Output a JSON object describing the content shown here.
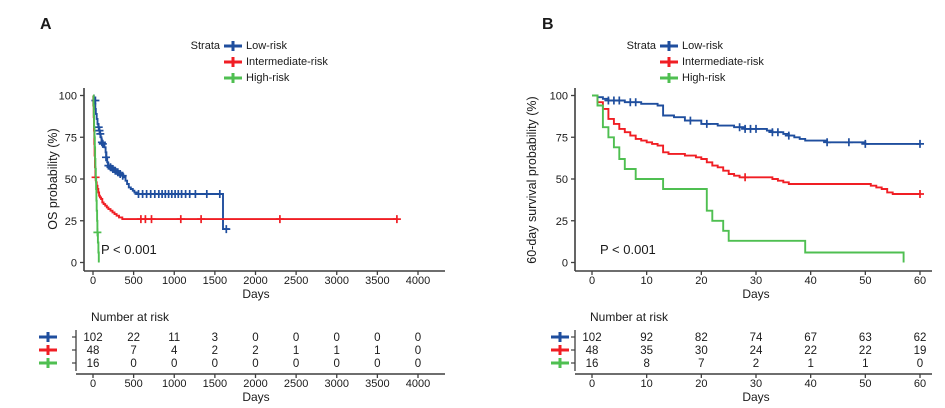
{
  "figure": {
    "background": "#ffffff",
    "text_color": "#1a1a1a",
    "axis_color": "#3f3f3f"
  },
  "chart_data": [
    {
      "type": "line",
      "subtype": "kaplan-meier-step",
      "panel": "A",
      "legend": {
        "title": "Strata",
        "position": "top",
        "entries": [
          {
            "name": "Low-risk",
            "color": "#1F4E9E"
          },
          {
            "name": "Intermediate-risk",
            "color": "#F01E24"
          },
          {
            "name": "High-risk",
            "color": "#4FBF51"
          }
        ]
      },
      "xlabel": "Days",
      "ylabel": "OS probability (%)",
      "p_value": "P < 0.001",
      "xlim": [
        0,
        4000
      ],
      "ylim": [
        0,
        100
      ],
      "x_ticks": [
        0,
        500,
        1000,
        1500,
        2000,
        2500,
        3000,
        3500,
        4000
      ],
      "y_ticks": [
        0,
        25,
        50,
        75,
        100
      ],
      "grid": false,
      "series": [
        {
          "name": "Low-risk",
          "color": "#1F4E9E",
          "steps": [
            [
              0,
              100
            ],
            [
              10,
              97
            ],
            [
              20,
              95
            ],
            [
              28,
              92
            ],
            [
              35,
              89
            ],
            [
              45,
              86
            ],
            [
              55,
              83
            ],
            [
              65,
              81
            ],
            [
              75,
              79
            ],
            [
              85,
              77
            ],
            [
              95,
              75
            ],
            [
              105,
              73
            ],
            [
              115,
              72
            ],
            [
              125,
              71
            ],
            [
              140,
              69
            ],
            [
              155,
              66
            ],
            [
              165,
              63
            ],
            [
              175,
              60
            ],
            [
              185,
              58
            ],
            [
              200,
              57
            ],
            [
              230,
              56
            ],
            [
              260,
              55
            ],
            [
              290,
              54
            ],
            [
              320,
              53
            ],
            [
              350,
              52
            ],
            [
              380,
              51
            ],
            [
              400,
              49
            ],
            [
              420,
              47
            ],
            [
              440,
              45
            ],
            [
              465,
              44
            ],
            [
              490,
              43
            ],
            [
              510,
              42
            ],
            [
              540,
              41
            ],
            [
              1600,
              41
            ],
            [
              1600,
              20
            ],
            [
              1680,
              20
            ]
          ],
          "censors": [
            [
              30,
              97
            ],
            [
              70,
              81
            ],
            [
              80,
              79
            ],
            [
              90,
              77
            ],
            [
              110,
              72
            ],
            [
              120,
              71
            ],
            [
              160,
              63
            ],
            [
              190,
              58
            ],
            [
              215,
              57
            ],
            [
              245,
              56
            ],
            [
              275,
              55
            ],
            [
              305,
              54
            ],
            [
              335,
              53
            ],
            [
              365,
              52
            ],
            [
              560,
              41
            ],
            [
              610,
              41
            ],
            [
              660,
              41
            ],
            [
              710,
              41
            ],
            [
              760,
              41
            ],
            [
              810,
              41
            ],
            [
              850,
              41
            ],
            [
              890,
              41
            ],
            [
              930,
              41
            ],
            [
              970,
              41
            ],
            [
              1010,
              41
            ],
            [
              1050,
              41
            ],
            [
              1090,
              41
            ],
            [
              1140,
              41
            ],
            [
              1190,
              41
            ],
            [
              1260,
              41
            ],
            [
              1400,
              41
            ],
            [
              1560,
              41
            ],
            [
              1640,
              20
            ]
          ]
        },
        {
          "name": "Intermediate-risk",
          "color": "#F01E24",
          "steps": [
            [
              0,
              100
            ],
            [
              4,
              94
            ],
            [
              8,
              87
            ],
            [
              12,
              79
            ],
            [
              16,
              71
            ],
            [
              20,
              64
            ],
            [
              25,
              57
            ],
            [
              30,
              51
            ],
            [
              38,
              48
            ],
            [
              46,
              46
            ],
            [
              55,
              44
            ],
            [
              65,
              42
            ],
            [
              75,
              40
            ],
            [
              85,
              39
            ],
            [
              100,
              38
            ],
            [
              115,
              36
            ],
            [
              130,
              35
            ],
            [
              150,
              34
            ],
            [
              170,
              33
            ],
            [
              190,
              32
            ],
            [
              215,
              31
            ],
            [
              240,
              30
            ],
            [
              265,
              29
            ],
            [
              290,
              28
            ],
            [
              320,
              27
            ],
            [
              360,
              26
            ],
            [
              3740,
              26
            ]
          ],
          "censors": [
            [
              32,
              51
            ],
            [
              590,
              26
            ],
            [
              645,
              26
            ],
            [
              720,
              26
            ],
            [
              1080,
              26
            ],
            [
              1330,
              26
            ],
            [
              2300,
              26
            ],
            [
              3740,
              26
            ]
          ]
        },
        {
          "name": "High-risk",
          "color": "#4FBF51",
          "steps": [
            [
              0,
              100
            ],
            [
              6,
              94
            ],
            [
              10,
              88
            ],
            [
              14,
              81
            ],
            [
              18,
              75
            ],
            [
              22,
              69
            ],
            [
              26,
              62
            ],
            [
              30,
              56
            ],
            [
              34,
              50
            ],
            [
              38,
              44
            ],
            [
              42,
              37
            ],
            [
              46,
              31
            ],
            [
              50,
              25
            ],
            [
              54,
              18
            ],
            [
              60,
              12
            ],
            [
              66,
              6
            ],
            [
              72,
              0
            ]
          ],
          "censors": [
            [
              54,
              18
            ]
          ]
        }
      ],
      "risk_table": {
        "title": "Number at risk",
        "xlabel": "Days",
        "ticks": [
          0,
          500,
          1000,
          1500,
          2000,
          2500,
          3000,
          3500,
          4000
        ],
        "rows": [
          {
            "name": "Low-risk",
            "color": "#1F4E9E",
            "values": [
              102,
              22,
              11,
              3,
              0,
              0,
              0,
              0,
              0
            ]
          },
          {
            "name": "Intermediate-risk",
            "color": "#F01E24",
            "values": [
              48,
              7,
              4,
              2,
              2,
              1,
              1,
              1,
              0
            ]
          },
          {
            "name": "High-risk",
            "color": "#4FBF51",
            "values": [
              16,
              0,
              0,
              0,
              0,
              0,
              0,
              0,
              0
            ]
          }
        ]
      }
    },
    {
      "type": "line",
      "subtype": "kaplan-meier-step",
      "panel": "B",
      "legend": {
        "title": "Strata",
        "position": "top",
        "entries": [
          {
            "name": "Low-risk",
            "color": "#1F4E9E"
          },
          {
            "name": "Intermediate-risk",
            "color": "#F01E24"
          },
          {
            "name": "High-risk",
            "color": "#4FBF51"
          }
        ]
      },
      "xlabel": "Days",
      "ylabel": "60-day survival probability (%)",
      "p_value": "P < 0.001",
      "xlim": [
        0,
        60
      ],
      "ylim": [
        0,
        100
      ],
      "x_ticks": [
        0,
        10,
        20,
        30,
        40,
        50,
        60
      ],
      "y_ticks": [
        0,
        25,
        50,
        75,
        100
      ],
      "grid": false,
      "series": [
        {
          "name": "Low-risk",
          "color": "#1F4E9E",
          "steps": [
            [
              0,
              100
            ],
            [
              1,
              99
            ],
            [
              2,
              98
            ],
            [
              3,
              97
            ],
            [
              6,
              96
            ],
            [
              9,
              95
            ],
            [
              12,
              94
            ],
            [
              13,
              88
            ],
            [
              15,
              87
            ],
            [
              17,
              85
            ],
            [
              20,
              83
            ],
            [
              23,
              82
            ],
            [
              26,
              81
            ],
            [
              28,
              80
            ],
            [
              32,
              79
            ],
            [
              33,
              78
            ],
            [
              35,
              77
            ],
            [
              36,
              76
            ],
            [
              37,
              75
            ],
            [
              38,
              74
            ],
            [
              39,
              73
            ],
            [
              43,
              72
            ],
            [
              50,
              71
            ],
            [
              60,
              71
            ]
          ],
          "censors": [
            [
              3,
              97
            ],
            [
              4,
              97
            ],
            [
              5,
              97
            ],
            [
              7,
              96
            ],
            [
              8,
              96
            ],
            [
              18,
              85
            ],
            [
              21,
              83
            ],
            [
              27,
              81
            ],
            [
              28,
              80
            ],
            [
              29,
              80
            ],
            [
              30,
              80
            ],
            [
              33,
              78
            ],
            [
              34,
              78
            ],
            [
              36,
              76
            ],
            [
              43,
              72
            ],
            [
              47,
              72
            ],
            [
              50,
              71
            ],
            [
              60,
              71
            ]
          ]
        },
        {
          "name": "Intermediate-risk",
          "color": "#F01E24",
          "steps": [
            [
              0,
              100
            ],
            [
              1,
              96
            ],
            [
              2,
              92
            ],
            [
              3,
              86
            ],
            [
              4,
              83
            ],
            [
              5,
              80
            ],
            [
              6,
              78
            ],
            [
              7,
              76
            ],
            [
              8,
              74
            ],
            [
              9,
              73
            ],
            [
              10,
              72
            ],
            [
              11,
              71
            ],
            [
              12,
              70
            ],
            [
              13,
              66
            ],
            [
              14,
              65
            ],
            [
              17,
              64
            ],
            [
              19,
              63
            ],
            [
              20,
              62
            ],
            [
              21,
              60
            ],
            [
              22,
              58
            ],
            [
              23,
              57
            ],
            [
              24,
              55
            ],
            [
              25,
              53
            ],
            [
              26,
              52
            ],
            [
              27,
              51
            ],
            [
              33,
              50
            ],
            [
              34,
              49
            ],
            [
              35,
              48
            ],
            [
              36,
              47
            ],
            [
              51,
              46
            ],
            [
              52,
              45
            ],
            [
              53,
              44
            ],
            [
              54,
              42
            ],
            [
              55,
              41
            ],
            [
              60,
              41
            ]
          ],
          "censors": [
            [
              28,
              51
            ],
            [
              60,
              41
            ]
          ]
        },
        {
          "name": "High-risk",
          "color": "#4FBF51",
          "steps": [
            [
              0,
              100
            ],
            [
              1,
              94
            ],
            [
              2,
              81
            ],
            [
              3,
              75
            ],
            [
              4,
              69
            ],
            [
              5,
              62
            ],
            [
              6,
              56
            ],
            [
              8,
              50
            ],
            [
              12,
              50
            ],
            [
              13,
              44
            ],
            [
              20,
              44
            ],
            [
              21,
              31
            ],
            [
              22,
              25
            ],
            [
              24,
              19
            ],
            [
              25,
              13
            ],
            [
              39,
              13
            ],
            [
              39,
              6
            ],
            [
              56,
              6
            ],
            [
              57,
              0
            ]
          ],
          "censors": []
        }
      ],
      "risk_table": {
        "title": "Number at risk",
        "xlabel": "Days",
        "ticks": [
          0,
          10,
          20,
          30,
          40,
          50,
          60
        ],
        "rows": [
          {
            "name": "Low-risk",
            "color": "#1F4E9E",
            "values": [
              102,
              92,
              82,
              74,
              67,
              63,
              62
            ]
          },
          {
            "name": "Intermediate-risk",
            "color": "#F01E24",
            "values": [
              48,
              35,
              30,
              24,
              22,
              22,
              19
            ]
          },
          {
            "name": "High-risk",
            "color": "#4FBF51",
            "values": [
              16,
              8,
              7,
              2,
              1,
              1,
              0
            ]
          }
        ]
      }
    }
  ]
}
